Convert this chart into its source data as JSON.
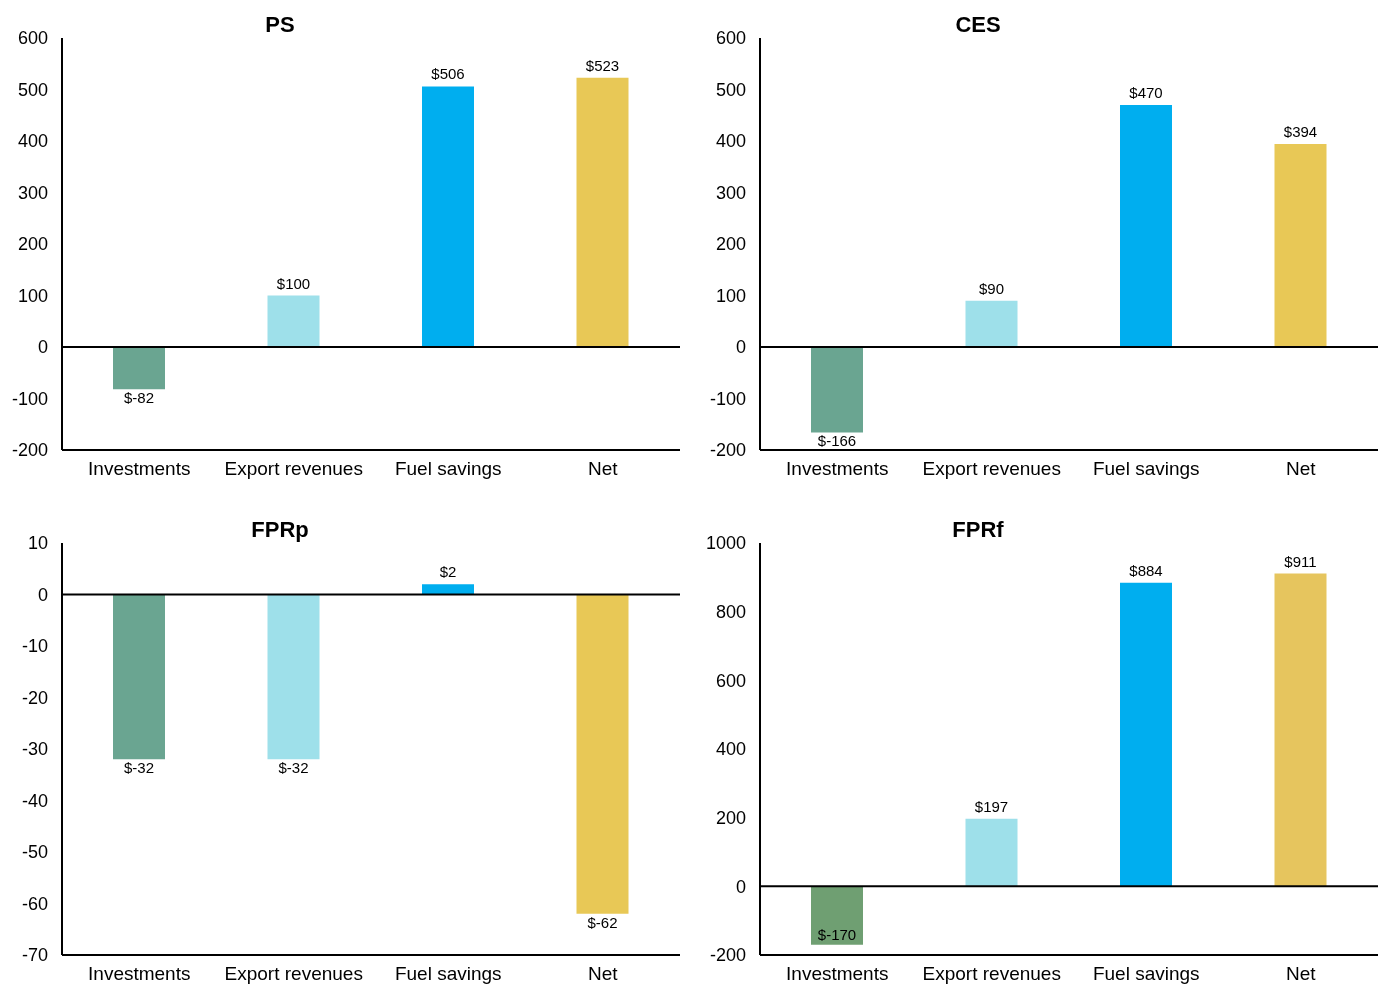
{
  "chart_data": [
    {
      "type": "bar",
      "title": "PS",
      "categories": [
        "Investments",
        "Export revenues",
        "Fuel savings",
        "Net"
      ],
      "values": [
        -82,
        100,
        506,
        523
      ],
      "colors": [
        "#6aa591",
        "#9ee0ea",
        "#00aeef",
        "#e8c856"
      ],
      "value_labels": [
        "$-82",
        "$100",
        "$506",
        "$523"
      ],
      "ylim": [
        -200,
        600
      ],
      "yticks": [
        -200,
        -100,
        0,
        100,
        200,
        300,
        400,
        500,
        600
      ],
      "ref_lines": [
        {
          "axis": "y",
          "value": 0,
          "color": "#000000"
        }
      ]
    },
    {
      "type": "bar",
      "title": "CES",
      "categories": [
        "Investments",
        "Export revenues",
        "Fuel savings",
        "Net"
      ],
      "values": [
        -166,
        90,
        470,
        394
      ],
      "colors": [
        "#6aa591",
        "#9ee0ea",
        "#00aeef",
        "#e8c856"
      ],
      "value_labels": [
        "$-166",
        "$90",
        "$470",
        "$394"
      ],
      "ylim": [
        -200,
        600
      ],
      "yticks": [
        -200,
        -100,
        0,
        100,
        200,
        300,
        400,
        500,
        600
      ],
      "ref_lines": [
        {
          "axis": "y",
          "value": 0,
          "color": "#000000"
        }
      ]
    },
    {
      "type": "bar",
      "title": "FPRp",
      "categories": [
        "Investments",
        "Export revenues",
        "Fuel savings",
        "Net"
      ],
      "values": [
        -32,
        -32,
        2,
        -62
      ],
      "colors": [
        "#6aa591",
        "#9ee0ea",
        "#00aeef",
        "#e8c856"
      ],
      "value_labels": [
        "$-32",
        "$-32",
        "$2",
        "$-62"
      ],
      "ylim": [
        -70,
        10
      ],
      "yticks": [
        -70,
        -60,
        -50,
        -40,
        -30,
        -20,
        -10,
        0,
        10
      ],
      "ref_lines": [
        {
          "axis": "y",
          "value": 0,
          "color": "#000000"
        }
      ]
    },
    {
      "type": "bar",
      "title": "FPRf",
      "categories": [
        "Investments",
        "Export revenues",
        "Fuel savings",
        "Net"
      ],
      "values": [
        -170,
        197,
        884,
        911
      ],
      "colors": [
        "#6f9f72",
        "#9ee0ea",
        "#00aeef",
        "#e6c55e"
      ],
      "value_labels": [
        "$-170",
        "$197",
        "$884",
        "$911"
      ],
      "ylim": [
        -200,
        1000
      ],
      "yticks": [
        -200,
        0,
        200,
        400,
        600,
        800,
        1000
      ],
      "ref_lines": [
        {
          "axis": "y",
          "value": 0,
          "color": "#000000"
        }
      ]
    }
  ]
}
